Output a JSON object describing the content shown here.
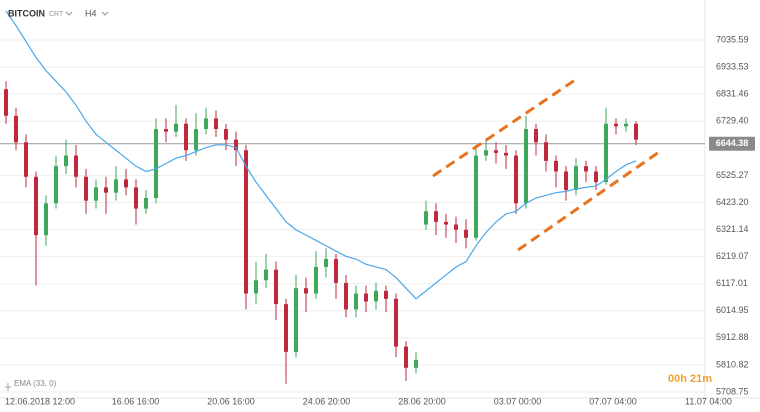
{
  "chart_data": {
    "type": "candlestick",
    "title": "BITCOIN",
    "chart_type_label": "CRT",
    "timeframe": "H4",
    "countdown": "00h 21m",
    "x_labels": [
      "12.06.2018 12:00",
      "16.06 16:00",
      "20.06 16:00",
      "24.06 20:00",
      "28.06 20:00",
      "03.07 00:00",
      "07.07 04:00",
      "11.07 04:00"
    ],
    "ylim": [
      5686.13,
      7186.37
    ],
    "yticks": [
      7035.59,
      6933.53,
      6831.46,
      {
        "value": 6729.4,
        "label": "6729.40"
      },
      6525.27,
      {
        "value": 6423.2,
        "label": "6423.20"
      },
      6321.14,
      6219.07,
      6117.01,
      6014.95,
      5912.88,
      5810.82,
      5708.75
    ],
    "current_price": 6644.38,
    "up_color": "#3da85a",
    "down_color": "#c0283e",
    "open": [
      6850,
      6750,
      6650,
      6520,
      6300,
      6420,
      6560,
      6600,
      6520,
      6430,
      6480,
      6460,
      6510,
      6480,
      6400,
      6440,
      6700,
      6690,
      6720,
      6620,
      6700,
      6740,
      6700,
      6660,
      6620,
      6080,
      6130,
      6170,
      6040,
      5860,
      6100,
      6080,
      6180,
      6210,
      6120,
      6020,
      6080,
      6050,
      6090,
      6060,
      5880,
      5800,
      6340,
      6390,
      6350,
      6340,
      6320,
      6290,
      6600,
      6620,
      6610,
      6600,
      6420,
      6700,
      6650,
      6580,
      6540,
      6470,
      6560,
      6540,
      6500,
      6720,
      6710,
      6720
    ],
    "high": [
      6880,
      6780,
      6680,
      6540,
      6450,
      6600,
      6660,
      6640,
      6550,
      6510,
      6520,
      6560,
      6550,
      6510,
      6470,
      6740,
      6740,
      6790,
      6740,
      6760,
      6780,
      6770,
      6720,
      6690,
      6640,
      6200,
      6230,
      6200,
      6060,
      6150,
      6140,
      6240,
      6250,
      6230,
      6150,
      6110,
      6110,
      6120,
      6110,
      6080,
      5900,
      5860,
      6430,
      6420,
      6380,
      6370,
      6360,
      6640,
      6660,
      6650,
      6640,
      6620,
      6750,
      6720,
      6680,
      6600,
      6560,
      6590,
      6580,
      6560,
      6780,
      6740,
      6740,
      6730
    ],
    "low": [
      6720,
      6620,
      6480,
      6110,
      6260,
      6400,
      6530,
      6480,
      6380,
      6400,
      6380,
      6430,
      6450,
      6340,
      6380,
      6420,
      6650,
      6670,
      6580,
      6600,
      6680,
      6670,
      6620,
      6560,
      6020,
      6040,
      6100,
      5980,
      5740,
      5840,
      6010,
      6060,
      6140,
      6060,
      5990,
      5990,
      6010,
      6020,
      6010,
      5840,
      5750,
      5780,
      6320,
      6300,
      6290,
      6270,
      6250,
      6280,
      6580,
      6570,
      6550,
      6380,
      6400,
      6600,
      6540,
      6480,
      6430,
      6450,
      6500,
      6470,
      6490,
      6680,
      6690,
      6640
    ],
    "close": [
      6750,
      6650,
      6520,
      6300,
      6420,
      6560,
      6600,
      6520,
      6430,
      6480,
      6460,
      6510,
      6480,
      6400,
      6440,
      6700,
      6690,
      6720,
      6620,
      6700,
      6740,
      6700,
      6660,
      6620,
      6080,
      6130,
      6170,
      6040,
      5860,
      6100,
      6080,
      6180,
      6210,
      6120,
      6020,
      6080,
      6050,
      6090,
      6060,
      5880,
      5800,
      5830,
      6390,
      6350,
      6340,
      6320,
      6290,
      6600,
      6620,
      6610,
      6600,
      6420,
      6700,
      6650,
      6580,
      6540,
      6470,
      6560,
      6540,
      6500,
      6720,
      6710,
      6720,
      6660
    ],
    "ema": {
      "name": "EMA (33, 0)",
      "color": "#4aa8e8",
      "values": [
        7145,
        7090,
        7030,
        6970,
        6920,
        6880,
        6840,
        6790,
        6730,
        6680,
        6650,
        6620,
        6590,
        6560,
        6540,
        6550,
        6570,
        6590,
        6600,
        6615,
        6630,
        6640,
        6640,
        6630,
        6560,
        6500,
        6450,
        6400,
        6350,
        6320,
        6300,
        6280,
        6260,
        6240,
        6220,
        6210,
        6190,
        6180,
        6170,
        6140,
        6100,
        6060,
        6090,
        6120,
        6150,
        6180,
        6200,
        6260,
        6310,
        6350,
        6380,
        6390,
        6420,
        6440,
        6450,
        6460,
        6465,
        6475,
        6480,
        6485,
        6510,
        6540,
        6565,
        6580
      ]
    }
  }
}
